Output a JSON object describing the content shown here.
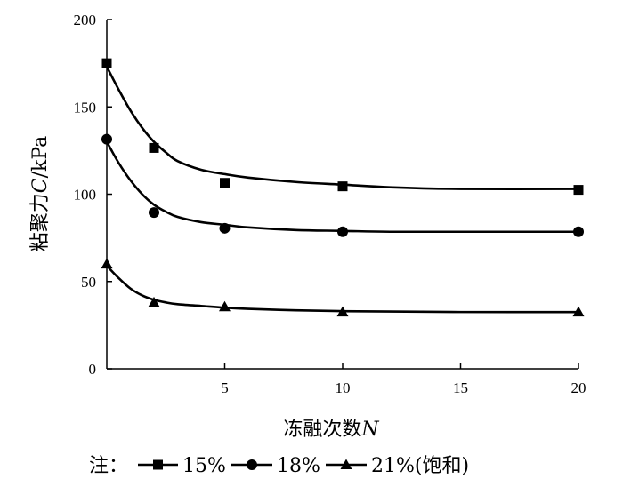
{
  "chart_data": {
    "type": "scatter",
    "xlabel": "冻融次数",
    "xlabel_var": "N",
    "ylabel": "粘聚力",
    "ylabel_var": "C",
    "ylabel_unit": "/kPa",
    "xlim": [
      0,
      20
    ],
    "ylim": [
      0,
      200
    ],
    "xticks": [
      5,
      10,
      15,
      20
    ],
    "yticks": [
      0,
      50,
      100,
      150,
      200
    ],
    "grid": false,
    "legend_prefix": "注：",
    "series": [
      {
        "name": "15%",
        "marker": "square",
        "x": [
          0,
          2,
          5,
          10,
          20
        ],
        "y": [
          175,
          126.5,
          106.5,
          104.5,
          102.5
        ],
        "fit": [
          [
            0,
            173
          ],
          [
            0.5,
            160
          ],
          [
            1,
            148
          ],
          [
            1.5,
            138
          ],
          [
            2,
            130
          ],
          [
            2.5,
            124
          ],
          [
            3,
            119
          ],
          [
            4,
            114
          ],
          [
            5,
            111.5
          ],
          [
            6,
            109.5
          ],
          [
            8,
            107
          ],
          [
            10,
            105.5
          ],
          [
            12,
            104
          ],
          [
            15,
            103
          ],
          [
            20,
            103
          ]
        ]
      },
      {
        "name": "18%",
        "marker": "circle",
        "x": [
          0,
          2,
          5,
          10,
          20
        ],
        "y": [
          131.5,
          89.5,
          80.5,
          78.5,
          78.5
        ],
        "fit": [
          [
            0,
            130
          ],
          [
            0.5,
            118
          ],
          [
            1,
            108
          ],
          [
            1.5,
            100
          ],
          [
            2,
            94
          ],
          [
            2.5,
            90
          ],
          [
            3,
            87
          ],
          [
            4,
            84
          ],
          [
            5,
            82.5
          ],
          [
            6,
            81
          ],
          [
            8,
            79.5
          ],
          [
            10,
            79
          ],
          [
            12,
            78.5
          ],
          [
            15,
            78.5
          ],
          [
            20,
            78.5
          ]
        ]
      },
      {
        "name": "21%(饱和)",
        "marker": "triangle",
        "x": [
          0,
          2,
          5,
          10,
          20
        ],
        "y": [
          60,
          38,
          35.5,
          32.5,
          32.5
        ],
        "fit": [
          [
            0,
            59
          ],
          [
            0.5,
            52
          ],
          [
            1,
            46
          ],
          [
            1.5,
            42
          ],
          [
            2,
            39.5
          ],
          [
            2.5,
            38
          ],
          [
            3,
            37
          ],
          [
            4,
            36
          ],
          [
            5,
            35
          ],
          [
            6,
            34.3
          ],
          [
            8,
            33.5
          ],
          [
            10,
            33
          ],
          [
            12,
            32.8
          ],
          [
            15,
            32.5
          ],
          [
            20,
            32.5
          ]
        ]
      }
    ]
  }
}
